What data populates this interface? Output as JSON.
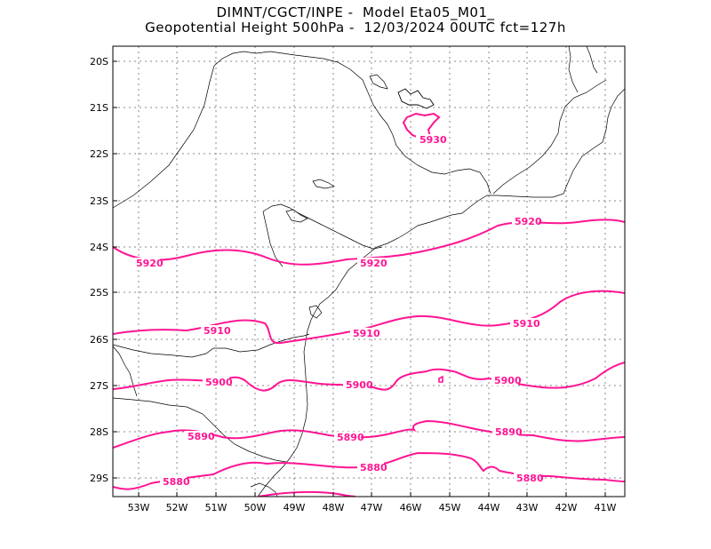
{
  "title": {
    "line1": "DIMNT/CGCT/INPE -  Model Eta05_M01_",
    "line2": "Geopotential Height 500hPa -  12/03/2024 00UTC fct=127h"
  },
  "axes": {
    "lat_labels": [
      "20S",
      "21S",
      "22S",
      "23S",
      "24S",
      "25S",
      "26S",
      "27S",
      "28S",
      "29S"
    ],
    "lon_labels": [
      "53W",
      "52W",
      "51W",
      "50W",
      "49W",
      "48W",
      "47W",
      "46W",
      "45W",
      "44W",
      "43W",
      "42W",
      "41W"
    ]
  },
  "colors": {
    "contour": "#ff1493",
    "coast": "#000000",
    "grid": "#888888"
  },
  "contours": [
    {
      "id": "5930",
      "label": "5930"
    },
    {
      "id": "5920",
      "label": "5920"
    },
    {
      "id": "5910",
      "label": "5910"
    },
    {
      "id": "5900",
      "label": "5900"
    },
    {
      "id": "5890",
      "label": "5890"
    },
    {
      "id": "5880",
      "label": "5880"
    }
  ],
  "contour_labels": [
    {
      "text": "5930"
    },
    {
      "text": "5920"
    },
    {
      "text": "5920"
    },
    {
      "text": "5920"
    },
    {
      "text": "5910"
    },
    {
      "text": "5910"
    },
    {
      "text": "5910"
    },
    {
      "text": "5900"
    },
    {
      "text": "5900"
    },
    {
      "text": "5900"
    },
    {
      "text": "5890"
    },
    {
      "text": "5890"
    },
    {
      "text": "5890"
    },
    {
      "text": "5880"
    },
    {
      "text": "5880"
    },
    {
      "text": "5880"
    }
  ]
}
